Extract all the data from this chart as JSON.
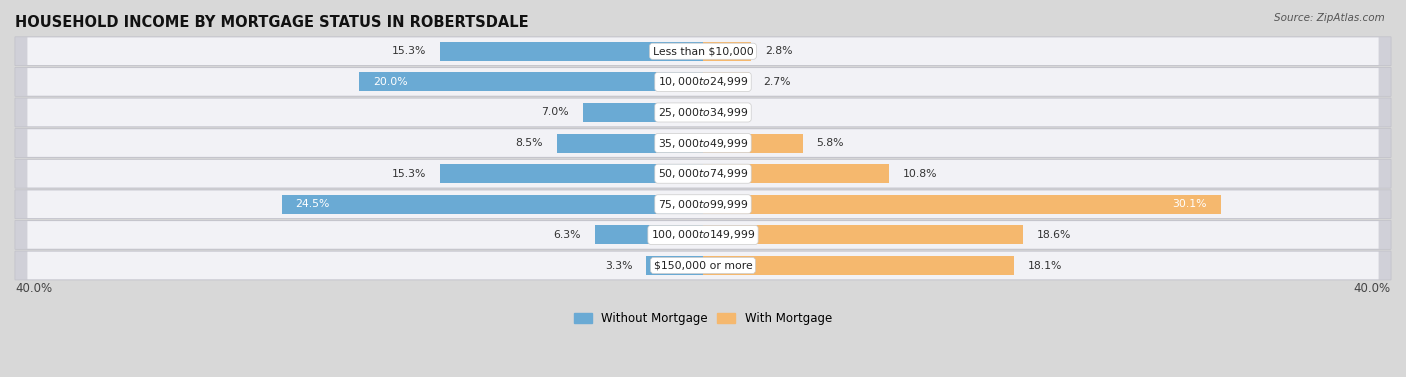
{
  "title": "HOUSEHOLD INCOME BY MORTGAGE STATUS IN ROBERTSDALE",
  "source": "Source: ZipAtlas.com",
  "categories": [
    "Less than $10,000",
    "$10,000 to $24,999",
    "$25,000 to $34,999",
    "$35,000 to $49,999",
    "$50,000 to $74,999",
    "$75,000 to $99,999",
    "$100,000 to $149,999",
    "$150,000 or more"
  ],
  "without_mortgage": [
    15.3,
    20.0,
    7.0,
    8.5,
    15.3,
    24.5,
    6.3,
    3.3
  ],
  "with_mortgage": [
    2.8,
    2.7,
    0.0,
    5.8,
    10.8,
    30.1,
    18.6,
    18.1
  ],
  "without_color": "#6aaad4",
  "with_color": "#f5b86e",
  "axis_max": 40.0,
  "bg_outer": "#d8d8d8",
  "bg_row_dark": "#d0d0d8",
  "bg_row_light": "#f2f2f6",
  "title_fontsize": 10.5,
  "bar_height": 0.62,
  "legend_label_without": "Without Mortgage",
  "legend_label_with": "With Mortgage"
}
